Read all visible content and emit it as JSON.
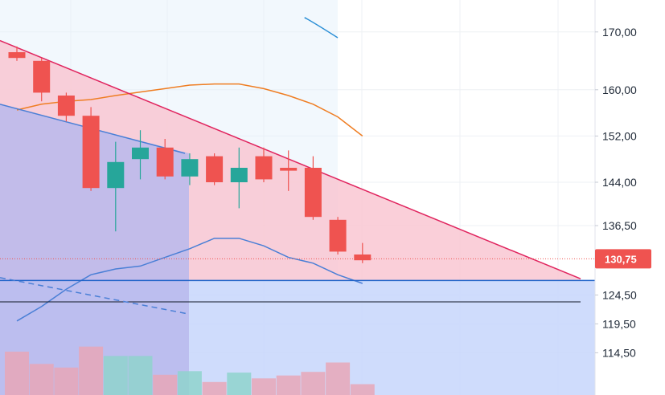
{
  "chart_data": {
    "type": "candlestick",
    "title": "",
    "y_axis": {
      "position": "right",
      "labels": [
        "170,00",
        "160,00",
        "152,00",
        "144,00",
        "136,50",
        "130,75",
        "124,50",
        "119,50",
        "114,50"
      ],
      "ticks": [
        {
          "label": "170,00",
          "value": 170.0
        },
        {
          "label": "160,00",
          "value": 160.0
        },
        {
          "label": "152,00",
          "value": 152.0
        },
        {
          "label": "144,00",
          "value": 144.0
        },
        {
          "label": "136,50",
          "value": 136.5
        },
        {
          "label": "124,50",
          "value": 124.5
        },
        {
          "label": "119,50",
          "value": 119.5
        },
        {
          "label": "114,50",
          "value": 114.5
        }
      ]
    },
    "last_price": {
      "label": "130,75",
      "value": 130.75,
      "color": "#ef5350"
    },
    "candles": [
      {
        "open": 166.5,
        "high": 167.5,
        "low": 165.0,
        "close": 165.5
      },
      {
        "open": 165.0,
        "high": 165.5,
        "low": 158.0,
        "close": 159.5
      },
      {
        "open": 159.0,
        "high": 159.5,
        "low": 154.5,
        "close": 155.5
      },
      {
        "open": 155.5,
        "high": 157.0,
        "low": 142.5,
        "close": 143.0
      },
      {
        "open": 143.0,
        "high": 151.0,
        "low": 135.5,
        "close": 147.5
      },
      {
        "open": 148.0,
        "high": 153.0,
        "low": 144.5,
        "close": 150.0
      },
      {
        "open": 150.0,
        "high": 151.5,
        "low": 144.5,
        "close": 145.0
      },
      {
        "open": 145.0,
        "high": 149.0,
        "low": 143.5,
        "close": 148.0
      },
      {
        "open": 148.5,
        "high": 149.0,
        "low": 143.5,
        "close": 144.0
      },
      {
        "open": 144.0,
        "high": 150.0,
        "low": 139.5,
        "close": 146.5
      },
      {
        "open": 148.5,
        "high": 150.0,
        "low": 144.0,
        "close": 144.5
      },
      {
        "open": 146.5,
        "high": 149.5,
        "low": 142.5,
        "close": 146.0
      },
      {
        "open": 146.5,
        "high": 148.5,
        "low": 137.5,
        "close": 138.0
      },
      {
        "open": 137.5,
        "high": 138.0,
        "low": 131.5,
        "close": 132.0
      },
      {
        "open": 131.5,
        "high": 133.5,
        "low": 130.0,
        "close": 130.5
      }
    ],
    "volume": [
      {
        "value": 0.6,
        "dir": "down"
      },
      {
        "value": 0.43,
        "dir": "down"
      },
      {
        "value": 0.38,
        "dir": "down"
      },
      {
        "value": 0.67,
        "dir": "down"
      },
      {
        "value": 0.54,
        "dir": "up"
      },
      {
        "value": 0.54,
        "dir": "up"
      },
      {
        "value": 0.28,
        "dir": "down"
      },
      {
        "value": 0.33,
        "dir": "up"
      },
      {
        "value": 0.18,
        "dir": "down"
      },
      {
        "value": 0.31,
        "dir": "up"
      },
      {
        "value": 0.23,
        "dir": "down"
      },
      {
        "value": 0.27,
        "dir": "down"
      },
      {
        "value": 0.32,
        "dir": "down"
      },
      {
        "value": 0.45,
        "dir": "down"
      },
      {
        "value": 0.15,
        "dir": "down"
      }
    ],
    "bollinger": {
      "upper": [
        null,
        null,
        null,
        null,
        null,
        null,
        null,
        null,
        null,
        null,
        null,
        null,
        null,
        null,
        null
      ],
      "middle": [
        156.5,
        157.5,
        158.0,
        158.3,
        159.0,
        159.6,
        160.2,
        160.8,
        161.0,
        161.0,
        160.2,
        159.0,
        157.5,
        155.3,
        152.0
      ],
      "lower": [
        120.0,
        122.5,
        125.5,
        128.0,
        129.0,
        129.5,
        131.0,
        132.5,
        134.3,
        134.3,
        133.0,
        131.0,
        130.0,
        128.0,
        126.5
      ]
    },
    "channel": {
      "upper_start": 168.5,
      "upper_end": 127.3,
      "lower_start": 157.5,
      "lower_end": 149.0,
      "support": 127.0,
      "reference": 123.3,
      "dashed_start": 127.5,
      "dashed_end": 121.2
    },
    "colors": {
      "up": "#26a69a",
      "down": "#ef5350",
      "channel_line": "#e0245e",
      "middle_band": "#ef7d22",
      "lower_band": "#4a7fd6",
      "support_line": "#1e63c9",
      "zone_red": "#f9c7d2",
      "zone_blue": "#c7d6fb",
      "zone_purple": "#b9b8ec"
    },
    "grid": true,
    "legend": "none"
  }
}
